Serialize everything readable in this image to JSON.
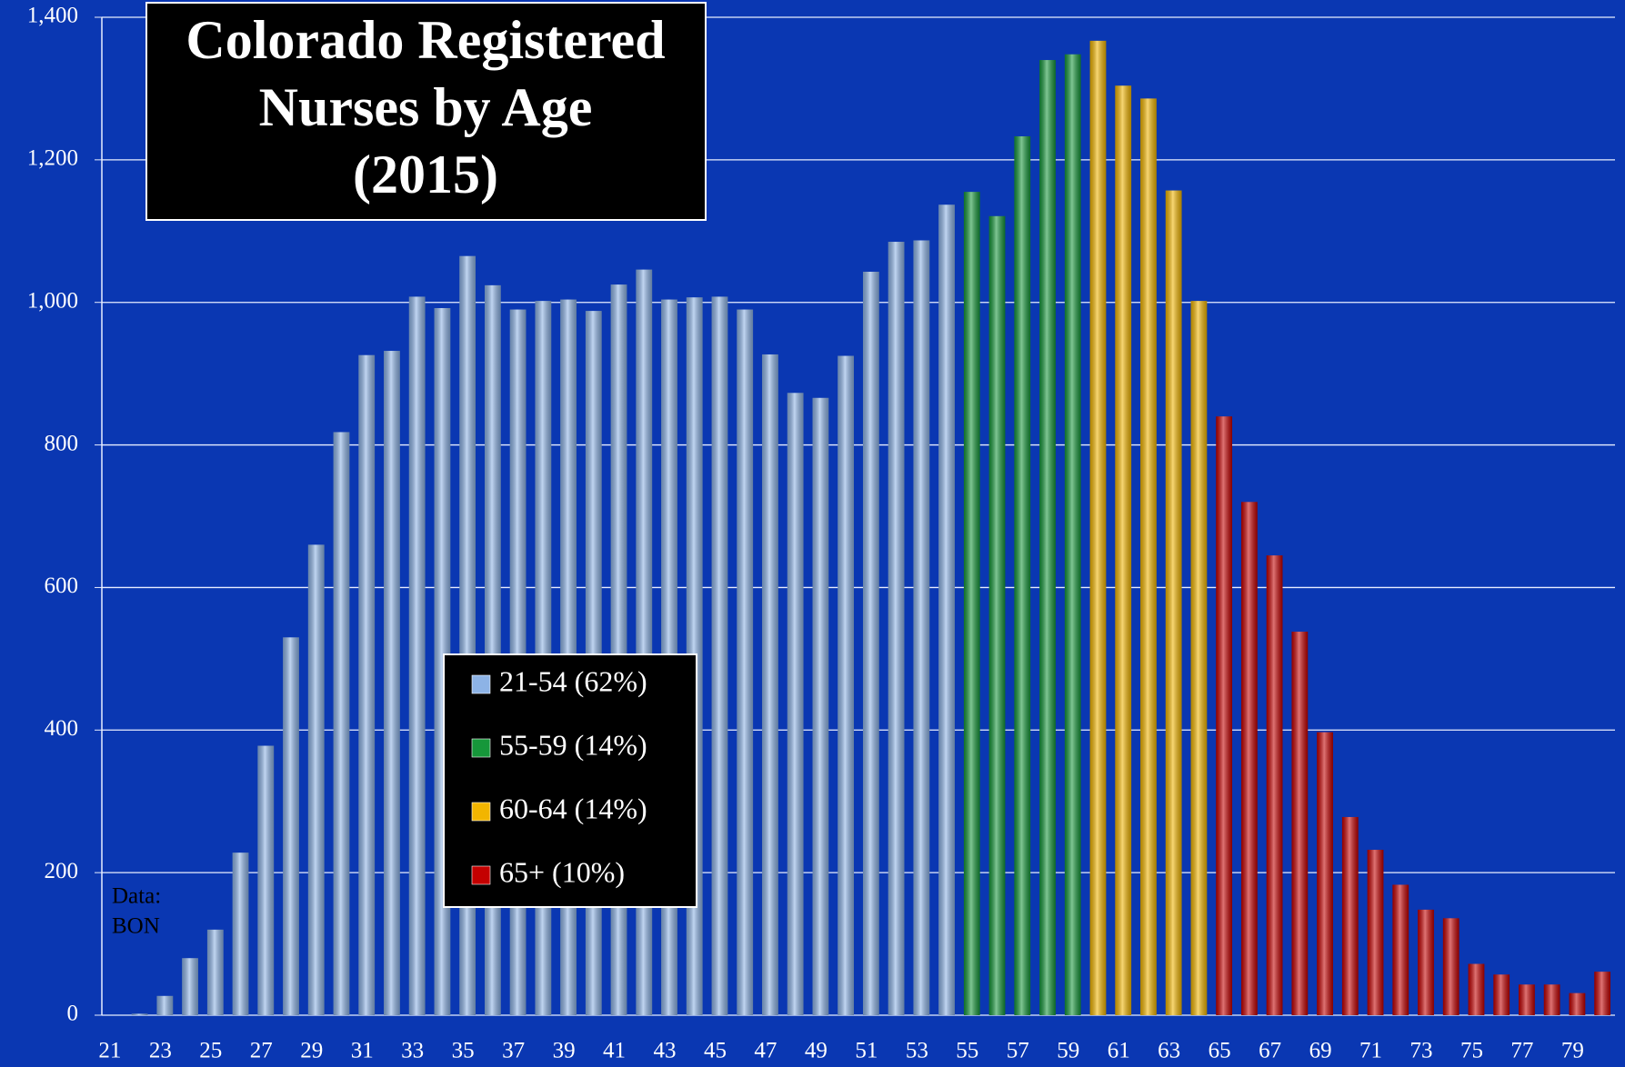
{
  "chart_data": {
    "type": "bar",
    "title": [
      "Colorado Registered",
      "Nurses by Age",
      "(2015)"
    ],
    "annotation": [
      "Data:",
      "BON"
    ],
    "categories": [
      "21",
      null,
      "23",
      null,
      "25",
      null,
      "27",
      null,
      "29",
      null,
      "31",
      null,
      "33",
      null,
      "35",
      null,
      "37",
      null,
      "39",
      null,
      "41",
      null,
      "43",
      null,
      "45",
      null,
      "47",
      null,
      "49",
      null,
      "51",
      null,
      "53",
      null,
      "55",
      null,
      "57",
      null,
      "59",
      null,
      "61",
      null,
      "63",
      null,
      "65",
      null,
      "67",
      null,
      "69",
      null,
      "71",
      null,
      "73",
      null,
      "75",
      null,
      "77",
      null,
      "79",
      null
    ],
    "series": [
      {
        "name": "21-54 (62%)",
        "color": "#8db3e6",
        "values": [
          0,
          2,
          27,
          80,
          120,
          228,
          378,
          530,
          660,
          818,
          926,
          932,
          1008,
          992,
          1065,
          1024,
          990,
          1002,
          1004,
          988,
          1025,
          1046,
          1004,
          1007,
          1008,
          990,
          927,
          873,
          866,
          925,
          1043,
          1085,
          1087,
          1137,
          null,
          null,
          null,
          null,
          null,
          null,
          null,
          null,
          null,
          null,
          null,
          null,
          null,
          null,
          null,
          null,
          null,
          null,
          null,
          null,
          null,
          null,
          null,
          null,
          null,
          null
        ]
      },
      {
        "name": "55-59 (14%)",
        "color": "#16973a",
        "values": [
          null,
          null,
          null,
          null,
          null,
          null,
          null,
          null,
          null,
          null,
          null,
          null,
          null,
          null,
          null,
          null,
          null,
          null,
          null,
          null,
          null,
          null,
          null,
          null,
          null,
          null,
          null,
          null,
          null,
          null,
          null,
          null,
          null,
          null,
          1155,
          1121,
          1233,
          1340,
          1348,
          null,
          null,
          null,
          null,
          null,
          null,
          null,
          null,
          null,
          null,
          null,
          null,
          null,
          null,
          null,
          null,
          null,
          null,
          null,
          null,
          null
        ]
      },
      {
        "name": "60-64 (14%)",
        "color": "#f2b500",
        "values": [
          null,
          null,
          null,
          null,
          null,
          null,
          null,
          null,
          null,
          null,
          null,
          null,
          null,
          null,
          null,
          null,
          null,
          null,
          null,
          null,
          null,
          null,
          null,
          null,
          null,
          null,
          null,
          null,
          null,
          null,
          null,
          null,
          null,
          null,
          null,
          null,
          null,
          null,
          null,
          1367,
          1304,
          1286,
          1157,
          1002,
          null,
          null,
          null,
          null,
          null,
          null,
          null,
          null,
          null,
          null,
          null,
          null,
          null,
          null,
          null,
          null
        ]
      },
      {
        "name": "65+ (10%)",
        "color": "#c40000",
        "values": [
          null,
          null,
          null,
          null,
          null,
          null,
          null,
          null,
          null,
          null,
          null,
          null,
          null,
          null,
          null,
          null,
          null,
          null,
          null,
          null,
          null,
          null,
          null,
          null,
          null,
          null,
          null,
          null,
          null,
          null,
          null,
          null,
          null,
          null,
          null,
          null,
          null,
          null,
          null,
          null,
          null,
          null,
          null,
          null,
          840,
          720,
          645,
          538,
          397,
          278,
          232,
          183,
          148,
          136,
          72,
          57,
          43,
          43,
          31,
          61
        ]
      }
    ],
    "ylim": [
      0,
      1400
    ],
    "yticks": [
      0,
      200,
      400,
      600,
      800,
      {
        "value": 1000,
        "label": "1,000"
      },
      {
        "value": 1200,
        "label": "1,200"
      },
      {
        "value": 1400,
        "label": "1,400"
      }
    ],
    "grid": true
  }
}
